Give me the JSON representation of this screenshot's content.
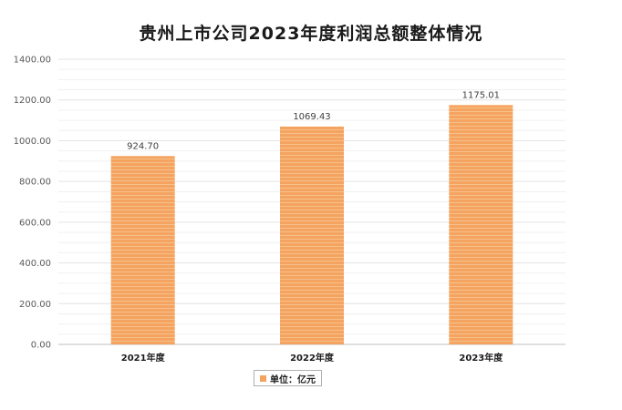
{
  "chart_data": {
    "type": "bar",
    "title": "贵州上市公司2023年度利润总额整体情况",
    "categories": [
      "2021年度",
      "2022年度",
      "2023年度"
    ],
    "values": [
      924.7,
      1069.43,
      1175.01
    ],
    "data_labels": [
      "924.70",
      "1069.43",
      "1175.01"
    ],
    "ylim": [
      0,
      1400
    ],
    "yticks": [
      0,
      200,
      400,
      600,
      800,
      1000,
      1200,
      1400
    ],
    "ytick_labels": [
      "0.00",
      "200.00",
      "400.00",
      "600.00",
      "800.00",
      "1000.00",
      "1200.00",
      "1400.00"
    ],
    "grid": true,
    "legend": {
      "label": "单位：亿元",
      "placement": "bottom"
    },
    "bar_color": "#F4A460",
    "bar_stripe_color": "#F7C08A"
  }
}
